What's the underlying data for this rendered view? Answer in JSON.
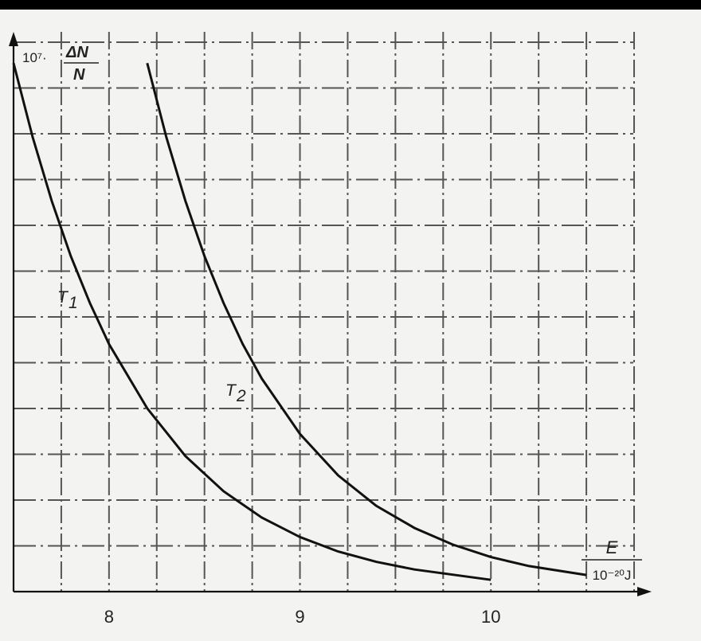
{
  "chart_data": {
    "type": "line",
    "ylabel_prefix": "10⁷·",
    "ylabel_num": "ΔN",
    "ylabel_den": "N",
    "xlabel_num": "E",
    "xlabel_den": "10⁻²⁰J",
    "xlim": [
      7.5,
      10.8
    ],
    "ylim": [
      0,
      8
    ],
    "xticks": [
      {
        "value": 8,
        "label": "8"
      },
      {
        "value": 9,
        "label": "9"
      },
      {
        "value": 10,
        "label": "10"
      }
    ],
    "grid": true,
    "series": [
      {
        "name": "T1",
        "label_main": "T",
        "label_sub": "1",
        "x": [
          7.5,
          7.6,
          7.7,
          7.8,
          7.9,
          8.0,
          8.2,
          8.4,
          8.6,
          8.8,
          9.0,
          9.2,
          9.4,
          9.6,
          10.0
        ],
        "y": [
          7.64,
          6.57,
          5.65,
          4.85,
          4.17,
          3.58,
          2.65,
          1.96,
          1.45,
          1.07,
          0.79,
          0.58,
          0.43,
          0.32,
          0.17
        ]
      },
      {
        "name": "T2",
        "label_main": "T",
        "label_sub": "2",
        "x": [
          8.2,
          8.3,
          8.4,
          8.5,
          8.6,
          8.7,
          8.8,
          9.0,
          9.2,
          9.4,
          9.6,
          9.8,
          10.0,
          10.2,
          10.5
        ],
        "y": [
          7.64,
          6.57,
          5.65,
          4.85,
          4.17,
          3.58,
          3.08,
          2.28,
          1.68,
          1.24,
          0.92,
          0.68,
          0.5,
          0.37,
          0.24
        ]
      }
    ]
  }
}
